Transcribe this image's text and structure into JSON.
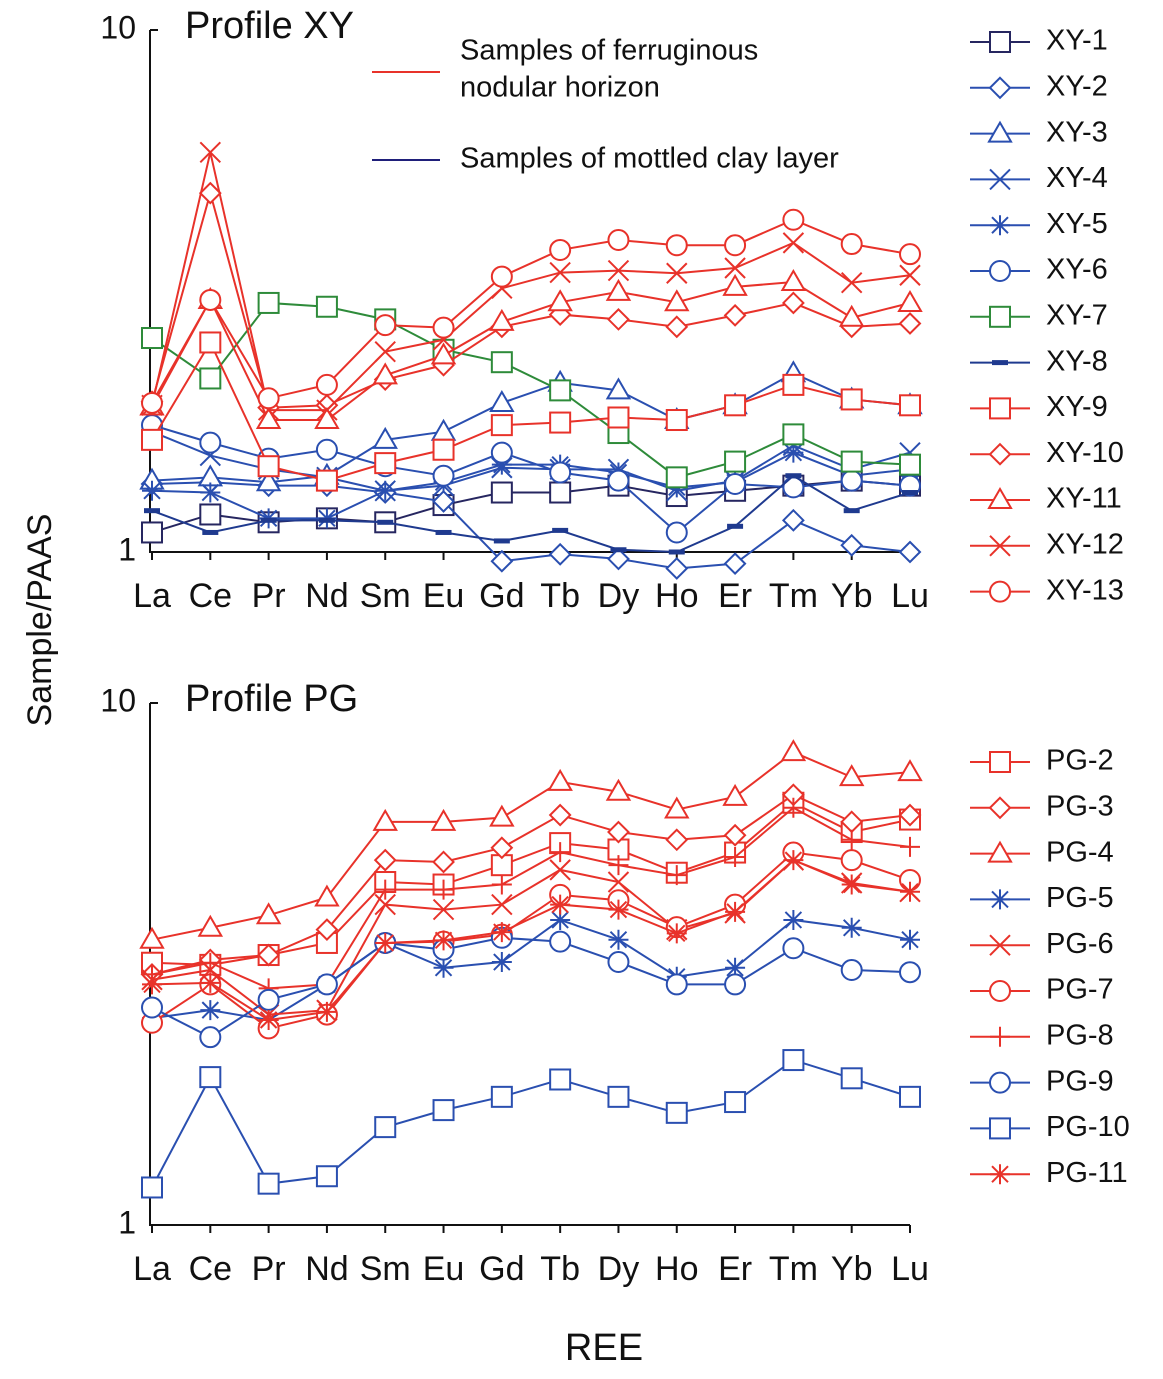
{
  "ylabel": "Sample/PAAS",
  "xlabel": "REE",
  "chart_data": [
    {
      "type": "line",
      "title": "Profile XY",
      "log_scale": true,
      "ylim": [
        1,
        10
      ],
      "yticks": [
        1,
        10
      ],
      "legend": "right",
      "categories": [
        "La",
        "Ce",
        "Pr",
        "Nd",
        "Sm",
        "Eu",
        "Gd",
        "Tb",
        "Dy",
        "Ho",
        "Er",
        "Tm",
        "Yb",
        "Lu"
      ],
      "annotations": [
        {
          "text": [
            "Samples of ferruginous",
            "nodular horizon"
          ],
          "color": "#e8322a"
        },
        {
          "text": [
            "Samples of mottled clay layer"
          ],
          "color": "#1f1f7a"
        }
      ],
      "series": [
        {
          "name": "XY-1",
          "color": "#262660",
          "marker": "square",
          "values": [
            1.09,
            1.18,
            1.14,
            1.16,
            1.14,
            1.23,
            1.3,
            1.3,
            1.34,
            1.28,
            1.31,
            1.34,
            1.37,
            1.34
          ]
        },
        {
          "name": "XY-2",
          "color": "#2a4fb0",
          "marker": "diamond",
          "values": [
            1.35,
            1.36,
            1.34,
            1.34,
            1.3,
            1.25,
            0.96,
            0.99,
            0.97,
            0.93,
            0.95,
            1.15,
            1.03,
            1.0
          ]
        },
        {
          "name": "XY-3",
          "color": "#2a4fb0",
          "marker": "triangle",
          "values": [
            1.37,
            1.39,
            1.36,
            1.4,
            1.64,
            1.7,
            1.93,
            2.11,
            2.04,
            1.79,
            1.91,
            2.2,
            1.96,
            1.91
          ]
        },
        {
          "name": "XY-4",
          "color": "#2a4fb0",
          "marker": "x",
          "values": [
            1.7,
            1.53,
            1.44,
            1.39,
            1.31,
            1.34,
            1.45,
            1.44,
            1.44,
            1.31,
            1.37,
            1.6,
            1.44,
            1.55
          ]
        },
        {
          "name": "XY-5",
          "color": "#2a4fb0",
          "marker": "asterisk",
          "values": [
            1.31,
            1.3,
            1.16,
            1.16,
            1.31,
            1.36,
            1.47,
            1.47,
            1.42,
            1.33,
            1.36,
            1.55,
            1.4,
            1.44
          ]
        },
        {
          "name": "XY-6",
          "color": "#2a4fb0",
          "marker": "circle",
          "values": [
            1.75,
            1.62,
            1.51,
            1.57,
            1.46,
            1.4,
            1.55,
            1.42,
            1.37,
            1.09,
            1.35,
            1.33,
            1.37,
            1.34
          ]
        },
        {
          "name": "XY-7",
          "color": "#2e8b3a",
          "marker": "square",
          "values": [
            2.57,
            2.15,
            3.0,
            2.95,
            2.79,
            2.44,
            2.31,
            2.04,
            1.69,
            1.39,
            1.49,
            1.68,
            1.49,
            1.47
          ]
        },
        {
          "name": "XY-8",
          "color": "#1f3a8f",
          "marker": "dash",
          "values": [
            1.2,
            1.09,
            1.15,
            1.15,
            1.14,
            1.09,
            1.05,
            1.1,
            1.01,
            1.0,
            1.12,
            1.4,
            1.2,
            1.3
          ]
        },
        {
          "name": "XY-9",
          "color": "#e8322a",
          "marker": "square",
          "values": [
            1.64,
            2.52,
            1.46,
            1.37,
            1.48,
            1.57,
            1.75,
            1.77,
            1.81,
            1.79,
            1.91,
            2.09,
            1.96,
            1.91
          ]
        },
        {
          "name": "XY-10",
          "color": "#e8322a",
          "marker": "diamond",
          "values": [
            1.94,
            4.87,
            1.89,
            1.91,
            2.14,
            2.28,
            2.7,
            2.85,
            2.79,
            2.7,
            2.84,
            3.0,
            2.7,
            2.74
          ]
        },
        {
          "name": "XY-11",
          "color": "#e8322a",
          "marker": "triangle",
          "values": [
            1.9,
            3.04,
            1.79,
            1.79,
            2.18,
            2.38,
            2.76,
            3.01,
            3.15,
            3.01,
            3.22,
            3.29,
            2.81,
            3.0
          ]
        },
        {
          "name": "XY-12",
          "color": "#e8322a",
          "marker": "x",
          "values": [
            1.91,
            5.83,
            1.87,
            1.87,
            2.42,
            2.55,
            3.2,
            3.43,
            3.46,
            3.42,
            3.5,
            3.91,
            3.28,
            3.39
          ]
        },
        {
          "name": "XY-13",
          "color": "#e8322a",
          "marker": "circle",
          "values": [
            1.93,
            3.04,
            1.97,
            2.09,
            2.72,
            2.69,
            3.37,
            3.79,
            3.96,
            3.87,
            3.87,
            4.33,
            3.89,
            3.72
          ]
        }
      ]
    },
    {
      "type": "line",
      "title": "Profile PG",
      "log_scale": true,
      "ylim": [
        1,
        10
      ],
      "yticks": [
        1,
        10
      ],
      "legend": "right",
      "categories": [
        "La",
        "Ce",
        "Pr",
        "Nd",
        "Sm",
        "Eu",
        "Gd",
        "Tb",
        "Dy",
        "Ho",
        "Er",
        "Tm",
        "Yb",
        "Lu"
      ],
      "series": [
        {
          "name": "PG-2",
          "color": "#e8322a",
          "marker": "square",
          "values": [
            3.18,
            3.15,
            3.29,
            3.47,
            4.54,
            4.49,
            4.89,
            5.39,
            5.24,
            4.73,
            5.17,
            6.44,
            5.66,
            5.98
          ]
        },
        {
          "name": "PG-3",
          "color": "#e8322a",
          "marker": "diamond",
          "values": [
            3.02,
            3.22,
            3.29,
            3.68,
            5.0,
            4.96,
            5.28,
            6.1,
            5.66,
            5.47,
            5.58,
            6.67,
            5.92,
            6.1
          ]
        },
        {
          "name": "PG-4",
          "color": "#e8322a",
          "marker": "triangle",
          "values": [
            3.52,
            3.71,
            3.92,
            4.24,
            5.92,
            5.92,
            6.03,
            7.06,
            6.76,
            6.25,
            6.61,
            8.05,
            7.21,
            7.37
          ]
        },
        {
          "name": "PG-5",
          "color": "#2a4fb0",
          "marker": "asterisk",
          "values": [
            2.49,
            2.58,
            2.47,
            2.89,
            3.47,
            3.11,
            3.19,
            3.84,
            3.52,
            2.99,
            3.11,
            3.84,
            3.71,
            3.52
          ]
        },
        {
          "name": "PG-6",
          "color": "#e8322a",
          "marker": "x",
          "values": [
            2.95,
            3.08,
            2.53,
            2.58,
            4.11,
            4.02,
            4.11,
            4.79,
            4.54,
            3.68,
            3.96,
            5.0,
            4.52,
            4.35
          ]
        },
        {
          "name": "PG-7",
          "color": "#e8322a",
          "marker": "circle",
          "values": [
            2.44,
            2.89,
            2.38,
            2.53,
            3.47,
            3.49,
            3.6,
            4.29,
            4.19,
            3.72,
            4.11,
            5.17,
            5.0,
            4.58
          ]
        },
        {
          "name": "PG-8",
          "color": "#e8322a",
          "marker": "plus",
          "values": [
            3.02,
            3.18,
            2.84,
            2.89,
            4.39,
            4.39,
            4.49,
            5.18,
            4.89,
            4.68,
            5.07,
            6.3,
            5.47,
            5.3
          ]
        },
        {
          "name": "PG-9",
          "color": "#2a4fb0",
          "marker": "circle",
          "values": [
            2.61,
            2.29,
            2.7,
            2.89,
            3.47,
            3.37,
            3.55,
            3.49,
            3.19,
            2.89,
            2.89,
            3.39,
            3.08,
            3.05
          ]
        },
        {
          "name": "PG-10",
          "color": "#2a4fb0",
          "marker": "square",
          "values": [
            1.18,
            1.92,
            1.2,
            1.24,
            1.54,
            1.66,
            1.76,
            1.9,
            1.76,
            1.64,
            1.72,
            2.07,
            1.91,
            1.76
          ]
        },
        {
          "name": "PG-11",
          "color": "#e8322a",
          "marker": "asterisk",
          "values": [
            2.89,
            2.91,
            2.47,
            2.56,
            3.47,
            3.51,
            3.64,
            4.11,
            4.02,
            3.62,
            3.98,
            5.0,
            4.49,
            4.35
          ]
        }
      ]
    }
  ]
}
